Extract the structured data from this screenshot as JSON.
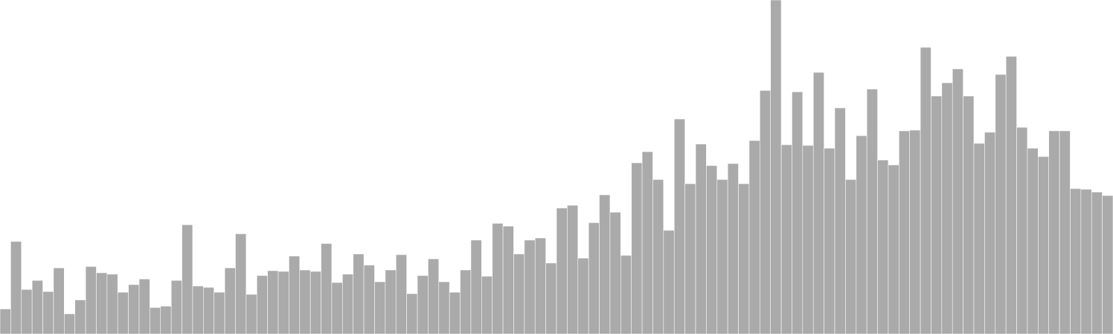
{
  "chart_data": {
    "type": "bar",
    "title": "",
    "xlabel": "",
    "ylabel": "",
    "grid": false,
    "legend": "none",
    "ylim": [
      0,
      480
    ],
    "bar_color": "#aaaaaa",
    "bar_edge_color": "#ffffff",
    "background": "#ffffff",
    "values": [
      36,
      133,
      64,
      77,
      61,
      95,
      29,
      49,
      97,
      88,
      86,
      60,
      71,
      79,
      38,
      40,
      77,
      157,
      69,
      67,
      60,
      95,
      144,
      57,
      84,
      91,
      90,
      112,
      92,
      90,
      130,
      74,
      86,
      115,
      99,
      75,
      92,
      114,
      58,
      84,
      108,
      75,
      60,
      92,
      135,
      83,
      159,
      155,
      115,
      135,
      138,
      102,
      181,
      185,
      109,
      160,
      200,
      175,
      113,
      246,
      262,
      222,
      149,
      309,
      216,
      273,
      242,
      222,
      245,
      216,
      278,
      350,
      480,
      272,
      348,
      271,
      376,
      267,
      325,
      222,
      285,
      352,
      250,
      243,
      292,
      293,
      412,
      342,
      361,
      381,
      342,
      274,
      290,
      373,
      399,
      297,
      267,
      255,
      292,
      292,
      209,
      208,
      204,
      199
    ]
  }
}
